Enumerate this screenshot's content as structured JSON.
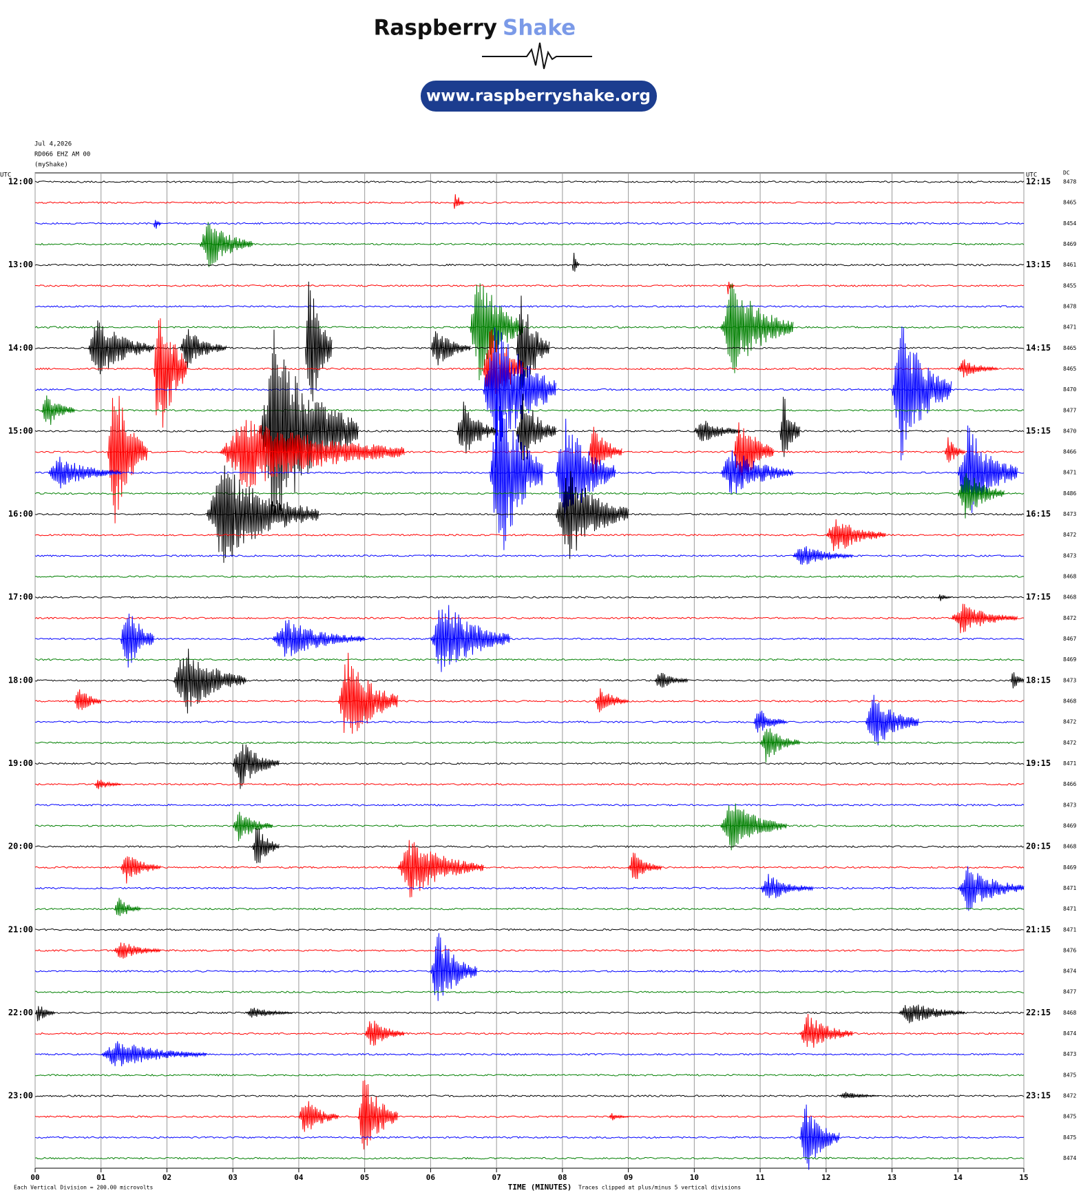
{
  "header": {
    "brand_first": "Raspberry",
    "brand_second": "Shake",
    "url": "www.raspberryshake.org"
  },
  "chart_data": {
    "type": "helicorder",
    "info": [
      "Jul 4,2026",
      "RD066 EHZ AM 00",
      "(myShake)"
    ],
    "left_axis_label": "UTC",
    "right_axis_label": "UTC",
    "dc_label": "DC",
    "x_label": "TIME (MINUTES)",
    "scale_note": "Each Vertical Division =  200.00 microvolts",
    "clip_note": "Traces clipped at plus/minus 5 vertical divisions",
    "colors": [
      "#000000",
      "#ff0000",
      "#0000ff",
      "#007f00"
    ],
    "xlim": [
      0,
      15
    ],
    "xticks": [
      {
        "value": 0,
        "label": "00"
      },
      {
        "value": 1,
        "label": "01"
      },
      {
        "value": 2,
        "label": "02"
      },
      {
        "value": 3,
        "label": "03"
      },
      {
        "value": 4,
        "label": "04"
      },
      {
        "value": 5,
        "label": "05"
      },
      {
        "value": 6,
        "label": "06"
      },
      {
        "value": 7,
        "label": "07"
      },
      {
        "value": 8,
        "label": "08"
      },
      {
        "value": 9,
        "label": "09"
      },
      {
        "value": 10,
        "label": "10"
      },
      {
        "value": 11,
        "label": "11"
      },
      {
        "value": 12,
        "label": "12"
      },
      {
        "value": 13,
        "label": "13"
      },
      {
        "value": 14,
        "label": "14"
      },
      {
        "value": 15,
        "label": "15"
      }
    ],
    "grid": true,
    "traces": [
      {
        "left": "12:00",
        "right": "12:15",
        "dc": 8478,
        "events": []
      },
      {
        "left": null,
        "right": null,
        "dc": 8465,
        "events": [
          {
            "start": 6.35,
            "end": 6.5,
            "amplitude": 0.6
          }
        ]
      },
      {
        "left": null,
        "right": null,
        "dc": 8454,
        "events": [
          {
            "start": 1.8,
            "end": 1.9,
            "amplitude": 0.5
          }
        ]
      },
      {
        "left": null,
        "right": null,
        "dc": 8469,
        "events": [
          {
            "start": 2.5,
            "end": 3.3,
            "amplitude": 1.3
          }
        ]
      },
      {
        "left": "13:00",
        "right": "13:15",
        "dc": 8461,
        "events": [
          {
            "start": 8.15,
            "end": 8.25,
            "amplitude": 0.8
          }
        ]
      },
      {
        "left": null,
        "right": null,
        "dc": 8455,
        "events": [
          {
            "start": 10.5,
            "end": 10.6,
            "amplitude": 0.5
          }
        ]
      },
      {
        "left": null,
        "right": null,
        "dc": 8478,
        "events": []
      },
      {
        "left": null,
        "right": null,
        "dc": 8471,
        "events": [
          {
            "start": 6.6,
            "end": 7.4,
            "amplitude": 3
          },
          {
            "start": 10.4,
            "end": 11.5,
            "amplitude": 2.5
          }
        ]
      },
      {
        "left": "14:00",
        "right": "14:15",
        "dc": 8465,
        "events": [
          {
            "start": 0.8,
            "end": 1.8,
            "amplitude": 1.5
          },
          {
            "start": 2.2,
            "end": 2.9,
            "amplitude": 1
          },
          {
            "start": 4.1,
            "end": 4.5,
            "amplitude": 4
          },
          {
            "start": 6.0,
            "end": 6.6,
            "amplitude": 1
          },
          {
            "start": 7.3,
            "end": 7.8,
            "amplitude": 3
          }
        ]
      },
      {
        "left": null,
        "right": null,
        "dc": 8465,
        "events": [
          {
            "start": 1.8,
            "end": 2.3,
            "amplitude": 4.5
          },
          {
            "start": 6.8,
            "end": 7.4,
            "amplitude": 3
          },
          {
            "start": 14.0,
            "end": 14.6,
            "amplitude": 0.5
          }
        ]
      },
      {
        "left": null,
        "right": null,
        "dc": 8470,
        "events": [
          {
            "start": 6.8,
            "end": 7.9,
            "amplitude": 4
          },
          {
            "start": 13.0,
            "end": 13.9,
            "amplitude": 3.5
          }
        ]
      },
      {
        "left": null,
        "right": null,
        "dc": 8477,
        "events": [
          {
            "start": 0.1,
            "end": 0.6,
            "amplitude": 1
          }
        ]
      },
      {
        "left": "15:00",
        "right": "15:15",
        "dc": 8470,
        "events": [
          {
            "start": 3.4,
            "end": 4.9,
            "amplitude": 5
          },
          {
            "start": 6.4,
            "end": 7.0,
            "amplitude": 1.5
          },
          {
            "start": 7.3,
            "end": 7.9,
            "amplitude": 2
          },
          {
            "start": 10.0,
            "end": 10.7,
            "amplitude": 0.7
          },
          {
            "start": 11.3,
            "end": 11.6,
            "amplitude": 2
          }
        ]
      },
      {
        "left": null,
        "right": null,
        "dc": 8466,
        "events": [
          {
            "start": 1.1,
            "end": 1.7,
            "amplitude": 4
          },
          {
            "start": 2.8,
            "end": 5.6,
            "amplitude": 2
          },
          {
            "start": 8.4,
            "end": 8.9,
            "amplitude": 1.5
          },
          {
            "start": 10.6,
            "end": 11.2,
            "amplitude": 2
          },
          {
            "start": 13.8,
            "end": 14.1,
            "amplitude": 0.8
          }
        ]
      },
      {
        "left": null,
        "right": null,
        "dc": 8471,
        "events": [
          {
            "start": 0.2,
            "end": 1.3,
            "amplitude": 0.8
          },
          {
            "start": 6.9,
            "end": 7.7,
            "amplitude": 5
          },
          {
            "start": 7.9,
            "end": 8.8,
            "amplitude": 3
          },
          {
            "start": 10.4,
            "end": 11.5,
            "amplitude": 1.3
          },
          {
            "start": 14.0,
            "end": 14.9,
            "amplitude": 2.5
          }
        ]
      },
      {
        "left": null,
        "right": null,
        "dc": 8486,
        "events": [
          {
            "start": 14.0,
            "end": 14.7,
            "amplitude": 1.3
          }
        ]
      },
      {
        "left": "16:00",
        "right": "16:15",
        "dc": 8473,
        "events": [
          {
            "start": 2.6,
            "end": 4.3,
            "amplitude": 2.5
          },
          {
            "start": 7.9,
            "end": 9.0,
            "amplitude": 2.5
          }
        ]
      },
      {
        "left": null,
        "right": null,
        "dc": 8472,
        "events": [
          {
            "start": 12.0,
            "end": 12.9,
            "amplitude": 1
          }
        ]
      },
      {
        "left": null,
        "right": null,
        "dc": 8473,
        "events": [
          {
            "start": 11.5,
            "end": 12.4,
            "amplitude": 0.6
          }
        ]
      },
      {
        "left": null,
        "right": null,
        "dc": 8468,
        "events": []
      },
      {
        "left": "17:00",
        "right": "17:15",
        "dc": 8468,
        "events": [
          {
            "start": 13.7,
            "end": 13.9,
            "amplitude": 0.2
          }
        ]
      },
      {
        "left": null,
        "right": null,
        "dc": 8472,
        "events": [
          {
            "start": 13.9,
            "end": 14.9,
            "amplitude": 0.8
          }
        ]
      },
      {
        "left": null,
        "right": null,
        "dc": 8467,
        "events": [
          {
            "start": 1.3,
            "end": 1.8,
            "amplitude": 2
          },
          {
            "start": 3.6,
            "end": 5.0,
            "amplitude": 1
          },
          {
            "start": 6.0,
            "end": 7.2,
            "amplitude": 2
          }
        ]
      },
      {
        "left": null,
        "right": null,
        "dc": 8469,
        "events": []
      },
      {
        "left": "18:00",
        "right": "18:15",
        "dc": 8473,
        "events": [
          {
            "start": 2.1,
            "end": 3.2,
            "amplitude": 1.8
          },
          {
            "start": 9.4,
            "end": 9.9,
            "amplitude": 0.5
          },
          {
            "start": 14.8,
            "end": 15.0,
            "amplitude": 0.6
          }
        ]
      },
      {
        "left": null,
        "right": null,
        "dc": 8468,
        "events": [
          {
            "start": 0.6,
            "end": 1.0,
            "amplitude": 0.8
          },
          {
            "start": 4.6,
            "end": 5.5,
            "amplitude": 2.5
          },
          {
            "start": 8.5,
            "end": 9.0,
            "amplitude": 0.8
          }
        ]
      },
      {
        "left": null,
        "right": null,
        "dc": 8472,
        "events": [
          {
            "start": 10.9,
            "end": 11.4,
            "amplitude": 0.7
          },
          {
            "start": 12.6,
            "end": 13.4,
            "amplitude": 1.5
          }
        ]
      },
      {
        "left": null,
        "right": null,
        "dc": 8472,
        "events": [
          {
            "start": 11.0,
            "end": 11.6,
            "amplitude": 1
          }
        ]
      },
      {
        "left": "19:00",
        "right": "19:15",
        "dc": 8471,
        "events": [
          {
            "start": 3.0,
            "end": 3.7,
            "amplitude": 1.3
          }
        ]
      },
      {
        "left": null,
        "right": null,
        "dc": 8466,
        "events": [
          {
            "start": 0.9,
            "end": 1.3,
            "amplitude": 0.3
          }
        ]
      },
      {
        "left": null,
        "right": null,
        "dc": 8473,
        "events": []
      },
      {
        "left": null,
        "right": null,
        "dc": 8469,
        "events": [
          {
            "start": 3.0,
            "end": 3.6,
            "amplitude": 0.8
          },
          {
            "start": 10.4,
            "end": 11.4,
            "amplitude": 1.3
          }
        ]
      },
      {
        "left": "20:00",
        "right": "20:15",
        "dc": 8468,
        "events": [
          {
            "start": 3.3,
            "end": 3.7,
            "amplitude": 1.2
          }
        ]
      },
      {
        "left": null,
        "right": null,
        "dc": 8469,
        "events": [
          {
            "start": 1.3,
            "end": 1.9,
            "amplitude": 0.8
          },
          {
            "start": 5.5,
            "end": 6.8,
            "amplitude": 1.5
          },
          {
            "start": 9.0,
            "end": 9.5,
            "amplitude": 0.8
          }
        ]
      },
      {
        "left": null,
        "right": null,
        "dc": 8471,
        "events": [
          {
            "start": 11.0,
            "end": 11.8,
            "amplitude": 0.7
          },
          {
            "start": 14.0,
            "end": 15.0,
            "amplitude": 1.2
          }
        ]
      },
      {
        "left": null,
        "right": null,
        "dc": 8471,
        "events": [
          {
            "start": 1.2,
            "end": 1.6,
            "amplitude": 0.6
          }
        ]
      },
      {
        "left": "21:00",
        "right": "21:15",
        "dc": 8471,
        "events": []
      },
      {
        "left": null,
        "right": null,
        "dc": 8476,
        "events": [
          {
            "start": 1.2,
            "end": 1.9,
            "amplitude": 0.5
          }
        ]
      },
      {
        "left": null,
        "right": null,
        "dc": 8474,
        "events": [
          {
            "start": 6.0,
            "end": 6.7,
            "amplitude": 2
          }
        ]
      },
      {
        "left": null,
        "right": null,
        "dc": 8477,
        "events": []
      },
      {
        "left": "22:00",
        "right": "22:15",
        "dc": 8468,
        "events": [
          {
            "start": 0.0,
            "end": 0.3,
            "amplitude": 0.5
          },
          {
            "start": 3.2,
            "end": 3.9,
            "amplitude": 0.3
          },
          {
            "start": 13.1,
            "end": 14.1,
            "amplitude": 0.6
          }
        ]
      },
      {
        "left": null,
        "right": null,
        "dc": 8474,
        "events": [
          {
            "start": 5.0,
            "end": 5.6,
            "amplitude": 0.8
          },
          {
            "start": 11.6,
            "end": 12.4,
            "amplitude": 1
          }
        ]
      },
      {
        "left": null,
        "right": null,
        "dc": 8473,
        "events": [
          {
            "start": 1.0,
            "end": 2.6,
            "amplitude": 0.7
          }
        ]
      },
      {
        "left": null,
        "right": null,
        "dc": 8475,
        "events": []
      },
      {
        "left": "23:00",
        "right": "23:15",
        "dc": 8472,
        "events": [
          {
            "start": 12.2,
            "end": 12.8,
            "amplitude": 0.2
          }
        ]
      },
      {
        "left": null,
        "right": null,
        "dc": 8475,
        "events": [
          {
            "start": 4.0,
            "end": 4.6,
            "amplitude": 1
          },
          {
            "start": 4.9,
            "end": 5.5,
            "amplitude": 2.2
          },
          {
            "start": 8.7,
            "end": 9.0,
            "amplitude": 0.2
          }
        ]
      },
      {
        "left": null,
        "right": null,
        "dc": 8475,
        "events": [
          {
            "start": 11.6,
            "end": 12.2,
            "amplitude": 1.9
          }
        ]
      },
      {
        "left": null,
        "right": null,
        "dc": 8474,
        "events": []
      }
    ]
  }
}
